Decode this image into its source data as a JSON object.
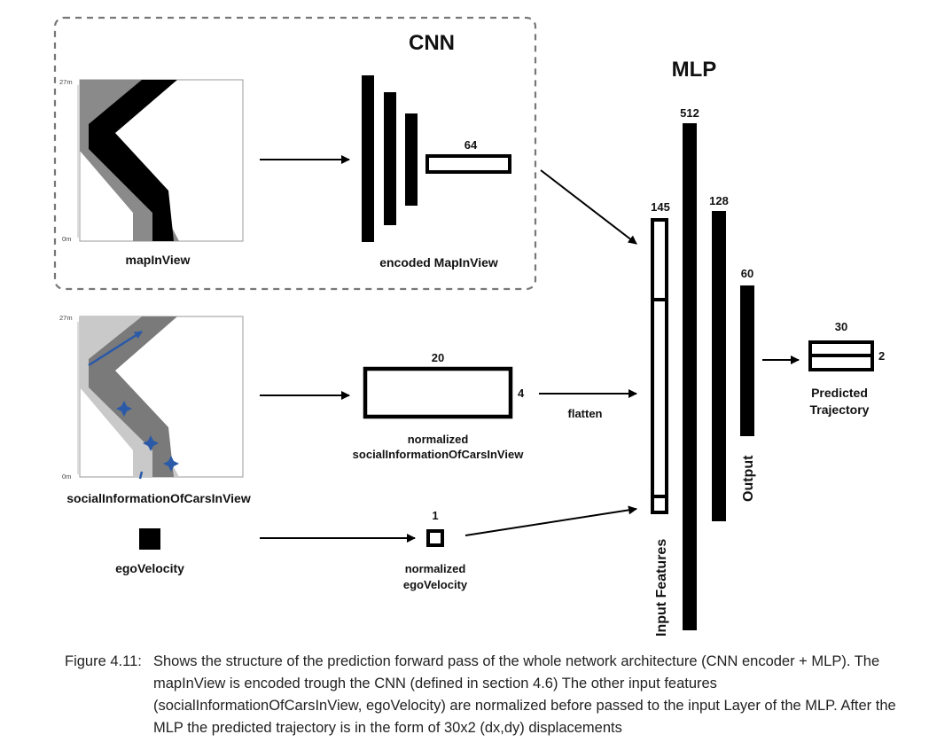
{
  "cnn": {
    "title": "CNN",
    "input_label": "mapInView",
    "encoded_label": "encoded MapInView",
    "encoded_size": "64"
  },
  "map_axis": {
    "top": "27m",
    "bottom": "0m"
  },
  "social": {
    "input_label": "socialInformationOfCarsInView",
    "box_width_label": "20",
    "box_height_label": "4",
    "normalized_label_line1": "normalized",
    "normalized_label_line2": "socialInformationOfCarsInView",
    "flatten_label": "flatten"
  },
  "ego": {
    "input_label": "egoVelocity",
    "size_label": "1",
    "normalized_label_line1": "normalized",
    "normalized_label_line2": "egoVelocity"
  },
  "mlp": {
    "title": "MLP",
    "input_features_label": "Input Features",
    "input_size": "145",
    "hidden1_size": "512",
    "hidden2_size": "128",
    "output_size": "60",
    "output_label": "Output"
  },
  "trajectory": {
    "width_label": "30",
    "height_label": "2",
    "label_line1": "Predicted",
    "label_line2": "Trajectory"
  },
  "caption": {
    "number": "Figure 4.11:",
    "text": "Shows the structure of the prediction forward pass of the whole network architecture (CNN encoder + MLP). The mapInView is encoded trough the CNN (defined in section 4.6) The other input features (socialInformationOfCarsInView, egoVelocity) are normalized before passed to the input Layer of the MLP. After the MLP the predicted trajectory is in the form of 30x2 (dx,dy) displacements"
  },
  "colors": {
    "ink": "#000000",
    "road_dark": "#808080",
    "road_light": "#c8c8c8",
    "road_mid": "#7a7a7a",
    "arrow_blue": "#2a5aa8"
  }
}
